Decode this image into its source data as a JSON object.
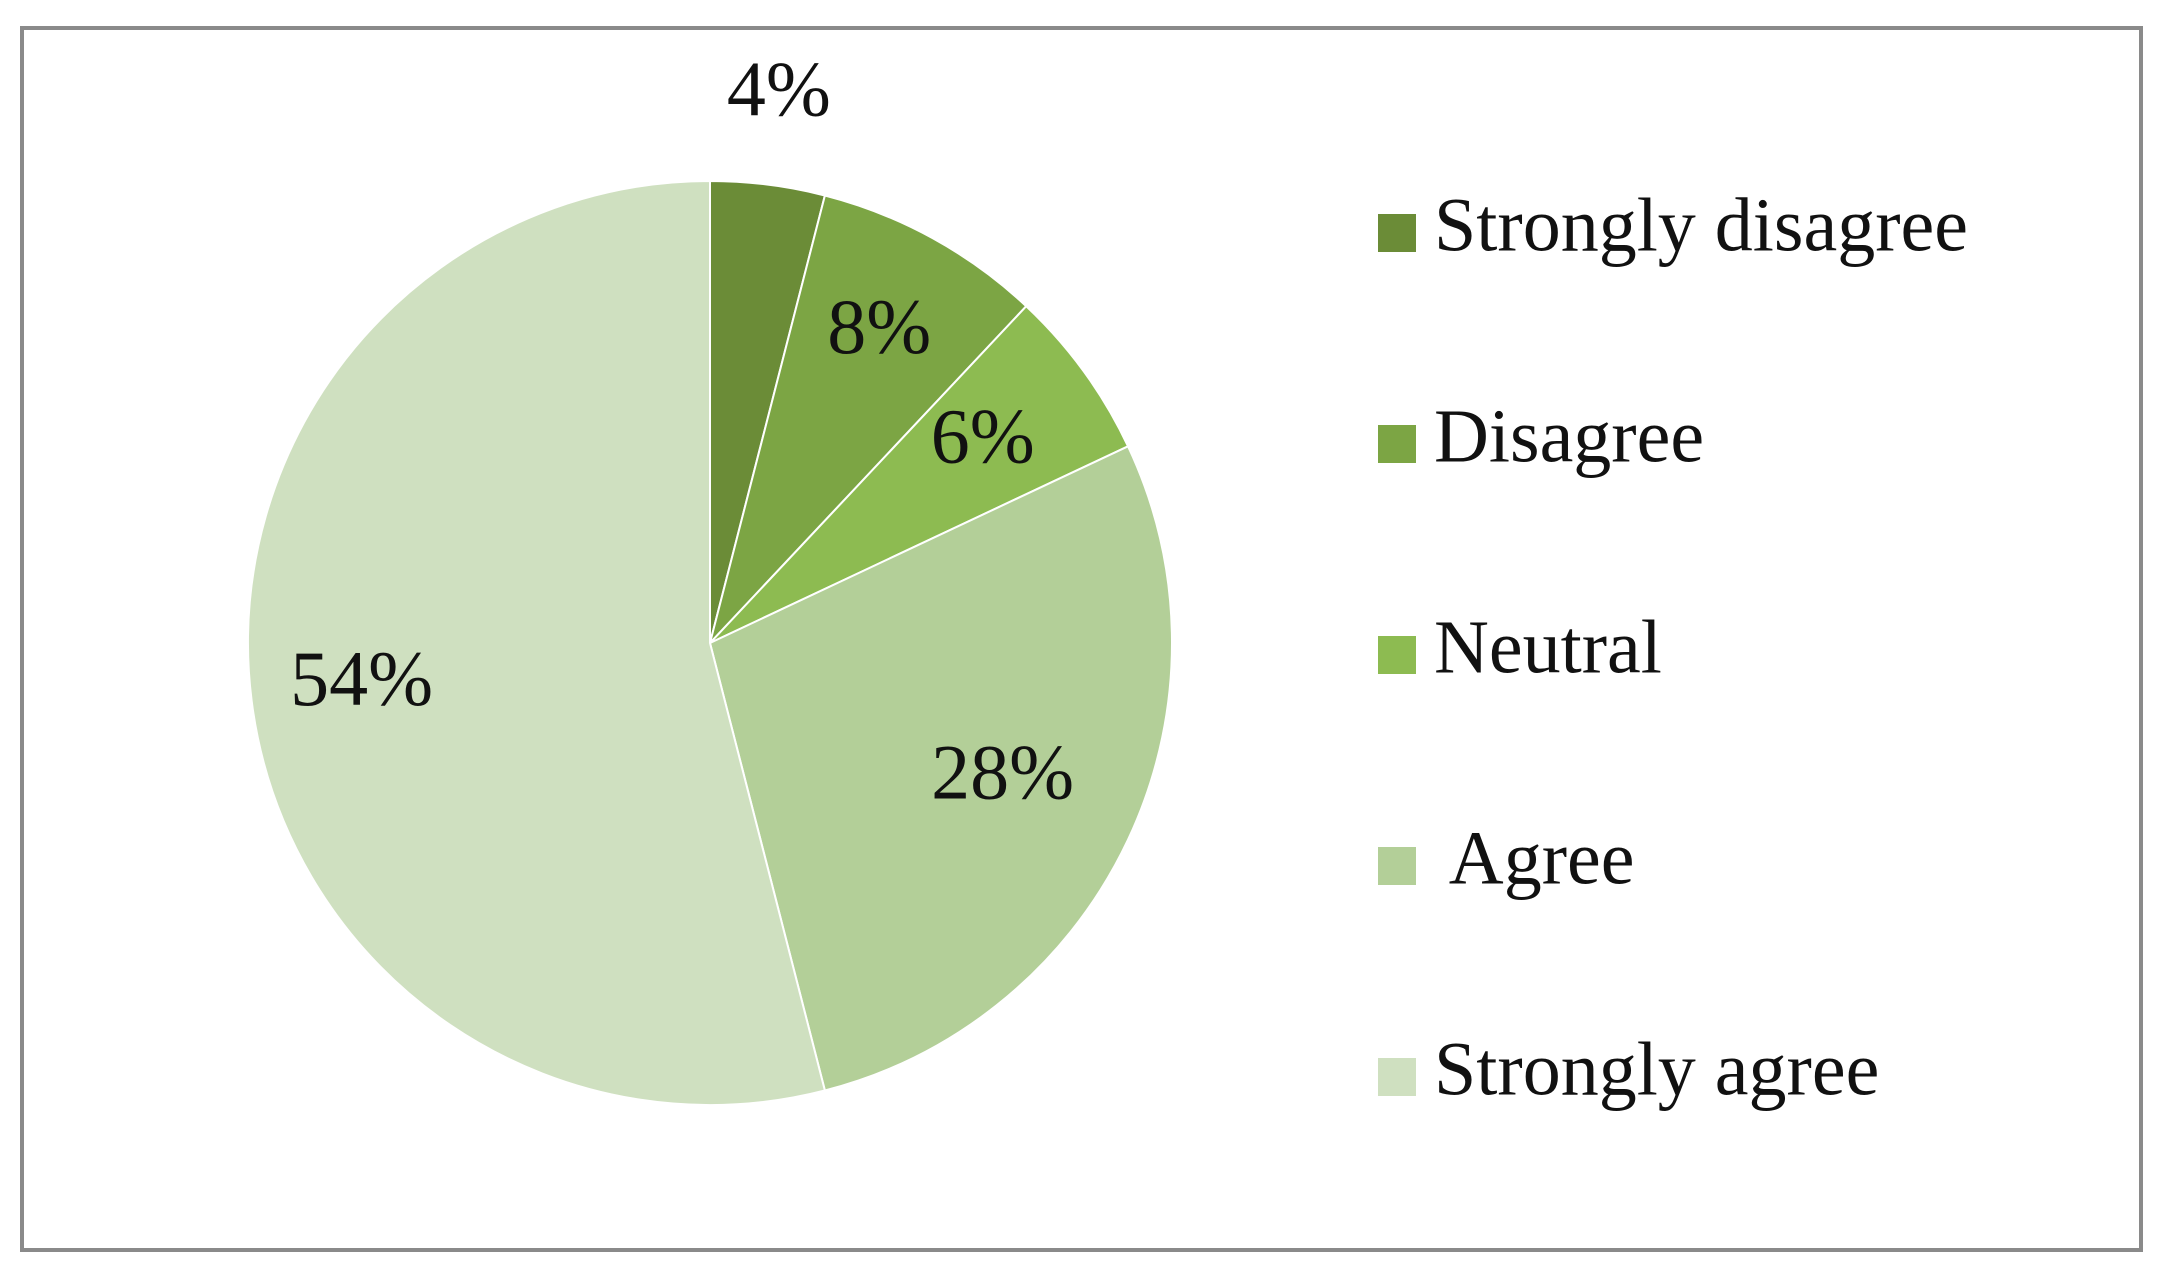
{
  "chart_data": {
    "type": "pie",
    "categories": [
      "Strongly disagree",
      "Disagree",
      "Neutral",
      " Agree",
      "Strongly agree"
    ],
    "values": [
      4,
      8,
      6,
      28,
      54
    ],
    "value_labels": [
      "4%",
      "8%",
      "6%",
      "28%",
      "54%"
    ],
    "colors": [
      "#6b8c37",
      "#7ca544",
      "#8dbb51",
      "#b3cf98",
      "#cfe0c0"
    ],
    "legend_position": "right",
    "start_angle": "12 o'clock",
    "direction": "clockwise"
  }
}
